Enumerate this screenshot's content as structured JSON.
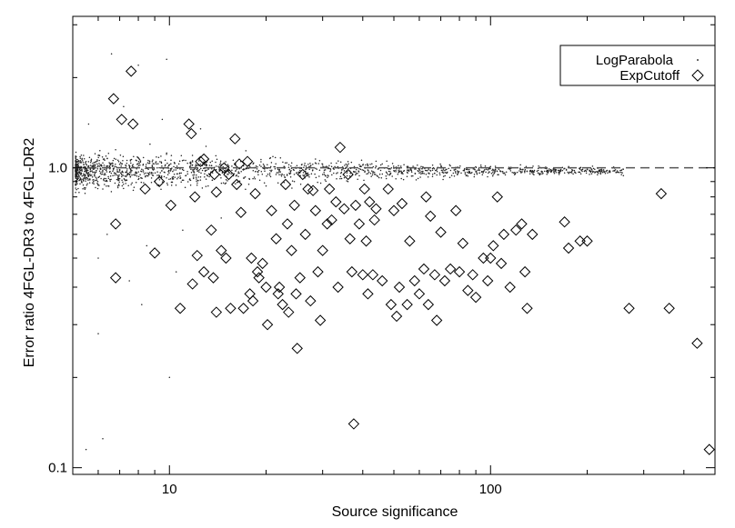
{
  "chart_data": {
    "type": "scatter",
    "title": "",
    "xlabel": "Source significance",
    "ylabel": "Error ratio 4FGL-DR3 to 4FGL-DR2",
    "xscale": "log",
    "yscale": "log",
    "xlim": [
      5,
      500
    ],
    "ylim": [
      0.095,
      3.2
    ],
    "x_ticks": [
      {
        "value": 10,
        "label": "10"
      },
      {
        "value": 100,
        "label": "100"
      }
    ],
    "y_ticks": [
      {
        "value": 0.1,
        "label": "0.1"
      },
      {
        "value": 1.0,
        "label": "1.0"
      }
    ],
    "reference_line": {
      "y": 1.0,
      "style": "dashed"
    },
    "legend": {
      "position": "top-right",
      "entries": [
        "LogParabola",
        "ExpCutoff"
      ]
    },
    "colors": {
      "LogParabola": "#000000",
      "ExpCutoff": "#000000"
    },
    "series": [
      {
        "name": "LogParabola",
        "marker": "dot",
        "density": "dense cloud of many small dots, concentrated between ratios 0.8 and 1.2 for significance 5-40, sparser and tighter around 1.0 at higher significance",
        "points": [
          [
            5.2,
            0.95
          ],
          [
            5.5,
            1.05
          ],
          [
            5.8,
            0.9
          ],
          [
            6.0,
            1.1
          ],
          [
            6.2,
            0.85
          ],
          [
            6.5,
            1.0
          ],
          [
            6.8,
            1.15
          ],
          [
            7.0,
            0.92
          ],
          [
            7.3,
            1.02
          ],
          [
            7.6,
            0.88
          ],
          [
            8.0,
            1.08
          ],
          [
            8.3,
            0.97
          ],
          [
            8.7,
            1.2
          ],
          [
            9.0,
            0.9
          ],
          [
            9.4,
            1.0
          ],
          [
            9.8,
            1.12
          ],
          [
            10.2,
            0.93
          ],
          [
            10.7,
            1.03
          ],
          [
            11.2,
            0.86
          ],
          [
            11.8,
            1.1
          ],
          [
            12.3,
            0.98
          ],
          [
            13.0,
            1.18
          ],
          [
            13.6,
            0.91
          ],
          [
            14.2,
            1.01
          ],
          [
            15.0,
            0.89
          ],
          [
            15.8,
            1.06
          ],
          [
            16.5,
            0.96
          ],
          [
            17.3,
            1.14
          ],
          [
            18.2,
            0.92
          ],
          [
            19.1,
            1.02
          ],
          [
            20.0,
            0.87
          ],
          [
            21.0,
            1.09
          ],
          [
            22.0,
            0.97
          ],
          [
            23.2,
            1.04
          ],
          [
            24.5,
            0.9
          ],
          [
            25.8,
            1.0
          ],
          [
            27.0,
            0.94
          ],
          [
            28.5,
            1.07
          ],
          [
            30.0,
            0.95
          ],
          [
            32.0,
            1.01
          ],
          [
            34.0,
            0.92
          ],
          [
            36.0,
            1.05
          ],
          [
            38.0,
            0.97
          ],
          [
            40.0,
            1.02
          ],
          [
            43.0,
            0.96
          ],
          [
            46.0,
            1.03
          ],
          [
            50.0,
            0.98
          ],
          [
            55.0,
            1.0
          ],
          [
            60.0,
            0.96
          ],
          [
            66.0,
            1.02
          ],
          [
            72.0,
            0.98
          ],
          [
            80.0,
            1.0
          ],
          [
            90.0,
            0.97
          ],
          [
            100.0,
            1.01
          ],
          [
            115.0,
            0.99
          ],
          [
            130.0,
            1.0
          ],
          [
            150.0,
            0.98
          ],
          [
            175.0,
            1.01
          ],
          [
            200.0,
            0.99
          ],
          [
            240.0,
            1.0
          ],
          [
            5.6,
            1.4
          ],
          [
            6.4,
            0.6
          ],
          [
            7.2,
            1.6
          ],
          [
            8.5,
            0.55
          ],
          [
            9.5,
            1.45
          ],
          [
            11.0,
            0.62
          ],
          [
            12.5,
            1.35
          ],
          [
            14.5,
            0.68
          ],
          [
            6.6,
            2.4
          ],
          [
            8.0,
            2.2
          ],
          [
            9.8,
            2.3
          ],
          [
            6.0,
            0.5
          ],
          [
            10.5,
            0.45
          ],
          [
            7.5,
            0.42
          ],
          [
            5.5,
            0.115
          ],
          [
            6.2,
            0.125
          ],
          [
            10.0,
            0.2
          ],
          [
            6.0,
            0.28
          ],
          [
            8.2,
            0.35
          ]
        ]
      },
      {
        "name": "ExpCutoff",
        "marker": "diamond",
        "points": [
          [
            6.7,
            1.7
          ],
          [
            7.6,
            2.1
          ],
          [
            7.1,
            1.45
          ],
          [
            7.7,
            1.4
          ],
          [
            6.8,
            0.65
          ],
          [
            6.8,
            0.43
          ],
          [
            8.4,
            0.85
          ],
          [
            9.0,
            0.52
          ],
          [
            9.3,
            0.9
          ],
          [
            10.1,
            0.75
          ],
          [
            10.8,
            0.34
          ],
          [
            11.5,
            1.4
          ],
          [
            11.7,
            1.3
          ],
          [
            11.8,
            0.41
          ],
          [
            12.0,
            0.8
          ],
          [
            12.2,
            0.51
          ],
          [
            12.5,
            1.05
          ],
          [
            12.8,
            1.07
          ],
          [
            12.8,
            0.45
          ],
          [
            13.5,
            0.62
          ],
          [
            13.7,
            0.43
          ],
          [
            13.8,
            0.95
          ],
          [
            14.0,
            0.33
          ],
          [
            14.0,
            0.83
          ],
          [
            14.5,
            0.53
          ],
          [
            14.8,
            1.0
          ],
          [
            15.0,
            0.5
          ],
          [
            15.3,
            0.95
          ],
          [
            15.5,
            0.34
          ],
          [
            16.0,
            1.25
          ],
          [
            16.2,
            0.88
          ],
          [
            16.5,
            1.03
          ],
          [
            16.7,
            0.71
          ],
          [
            17.0,
            0.34
          ],
          [
            17.5,
            1.05
          ],
          [
            17.8,
            0.38
          ],
          [
            18.0,
            0.5
          ],
          [
            18.2,
            0.36
          ],
          [
            18.5,
            0.82
          ],
          [
            18.8,
            0.45
          ],
          [
            19.0,
            0.43
          ],
          [
            19.5,
            0.48
          ],
          [
            20.0,
            0.4
          ],
          [
            20.2,
            0.3
          ],
          [
            20.8,
            0.72
          ],
          [
            21.5,
            0.58
          ],
          [
            21.8,
            0.38
          ],
          [
            22.0,
            0.4
          ],
          [
            22.5,
            0.35
          ],
          [
            23.0,
            0.88
          ],
          [
            23.3,
            0.65
          ],
          [
            23.5,
            0.33
          ],
          [
            24.0,
            0.53
          ],
          [
            24.5,
            0.75
          ],
          [
            24.8,
            0.38
          ],
          [
            25.0,
            0.25
          ],
          [
            25.5,
            0.43
          ],
          [
            26.0,
            0.95
          ],
          [
            26.5,
            0.6
          ],
          [
            27.0,
            0.85
          ],
          [
            27.5,
            0.36
          ],
          [
            28.0,
            0.84
          ],
          [
            28.5,
            0.72
          ],
          [
            29.0,
            0.45
          ],
          [
            29.5,
            0.31
          ],
          [
            30.0,
            0.53
          ],
          [
            31.0,
            0.65
          ],
          [
            31.5,
            0.85
          ],
          [
            32.0,
            0.67
          ],
          [
            33.0,
            0.77
          ],
          [
            33.5,
            0.4
          ],
          [
            34.0,
            1.17
          ],
          [
            35.0,
            0.73
          ],
          [
            36.0,
            0.95
          ],
          [
            36.5,
            0.58
          ],
          [
            37.0,
            0.45
          ],
          [
            37.5,
            0.14
          ],
          [
            38.0,
            0.75
          ],
          [
            39.0,
            0.65
          ],
          [
            40.0,
            0.44
          ],
          [
            40.5,
            0.85
          ],
          [
            41.0,
            0.57
          ],
          [
            41.5,
            0.38
          ],
          [
            42.0,
            0.77
          ],
          [
            43.0,
            0.44
          ],
          [
            43.5,
            0.67
          ],
          [
            44.0,
            0.73
          ],
          [
            46.0,
            0.42
          ],
          [
            48.0,
            0.85
          ],
          [
            49.0,
            0.35
          ],
          [
            50.0,
            0.72
          ],
          [
            51.0,
            0.32
          ],
          [
            52.0,
            0.4
          ],
          [
            53.0,
            0.76
          ],
          [
            55.0,
            0.35
          ],
          [
            56.0,
            0.57
          ],
          [
            58.0,
            0.42
          ],
          [
            60.0,
            0.38
          ],
          [
            62.0,
            0.46
          ],
          [
            63.0,
            0.8
          ],
          [
            64.0,
            0.35
          ],
          [
            65.0,
            0.69
          ],
          [
            67.0,
            0.44
          ],
          [
            68.0,
            0.31
          ],
          [
            70.0,
            0.61
          ],
          [
            72.0,
            0.42
          ],
          [
            75.0,
            0.46
          ],
          [
            78.0,
            0.72
          ],
          [
            80.0,
            0.45
          ],
          [
            82.0,
            0.56
          ],
          [
            85.0,
            0.39
          ],
          [
            88.0,
            0.44
          ],
          [
            90.0,
            0.37
          ],
          [
            95.0,
            0.5
          ],
          [
            98.0,
            0.42
          ],
          [
            100.0,
            0.5
          ],
          [
            102.0,
            0.55
          ],
          [
            105.0,
            0.8
          ],
          [
            108.0,
            0.48
          ],
          [
            110.0,
            0.6
          ],
          [
            115.0,
            0.4
          ],
          [
            120.0,
            0.62
          ],
          [
            125.0,
            0.65
          ],
          [
            128.0,
            0.45
          ],
          [
            130.0,
            0.34
          ],
          [
            135.0,
            0.6
          ],
          [
            170.0,
            0.66
          ],
          [
            175.0,
            0.54
          ],
          [
            190.0,
            0.57
          ],
          [
            200.0,
            0.57
          ],
          [
            270.0,
            0.34
          ],
          [
            340.0,
            0.82
          ],
          [
            360.0,
            0.34
          ],
          [
            440.0,
            0.26
          ],
          [
            480.0,
            0.115
          ]
        ]
      }
    ]
  }
}
